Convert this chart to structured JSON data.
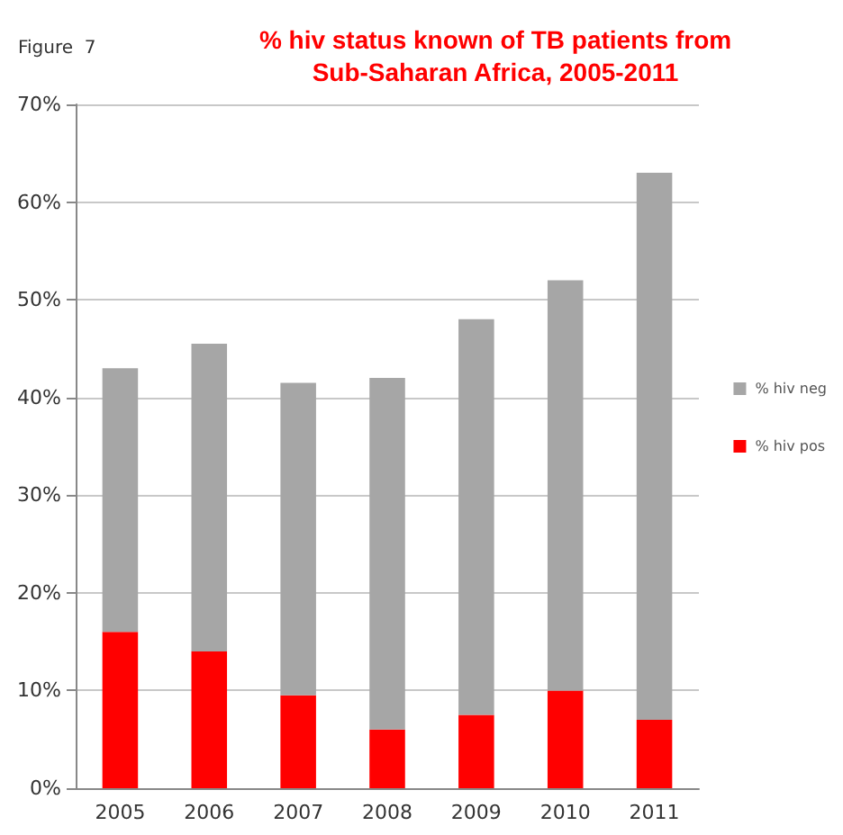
{
  "chart_data": {
    "type": "bar",
    "title": "% hiv status known of TB patients from\nSub-Saharan Africa, 2005-2011",
    "annotations": [
      "Figure  7"
    ],
    "categories": [
      "2005",
      "2006",
      "2007",
      "2008",
      "2009",
      "2010",
      "2011"
    ],
    "stacked": true,
    "series": [
      {
        "name": "% hiv pos",
        "color": "#ff0000",
        "values": [
          16,
          14,
          9.5,
          6,
          7.5,
          10,
          7
        ]
      },
      {
        "name": "% hiv neg",
        "color": "#a6a6a6",
        "values": [
          27,
          31.5,
          32,
          36,
          40.5,
          42,
          56
        ]
      }
    ],
    "ylim": [
      0,
      70
    ],
    "yticks": [
      {
        "value": 0,
        "label": "0%"
      },
      {
        "value": 10,
        "label": "10%"
      },
      {
        "value": 20,
        "label": "20%"
      },
      {
        "value": 30,
        "label": "30%"
      },
      {
        "value": 40,
        "label": "40%"
      },
      {
        "value": 50,
        "label": "50%"
      },
      {
        "value": 60,
        "label": "60%"
      },
      {
        "value": 70,
        "label": "70%"
      }
    ],
    "grid": "y",
    "legend": "right"
  }
}
